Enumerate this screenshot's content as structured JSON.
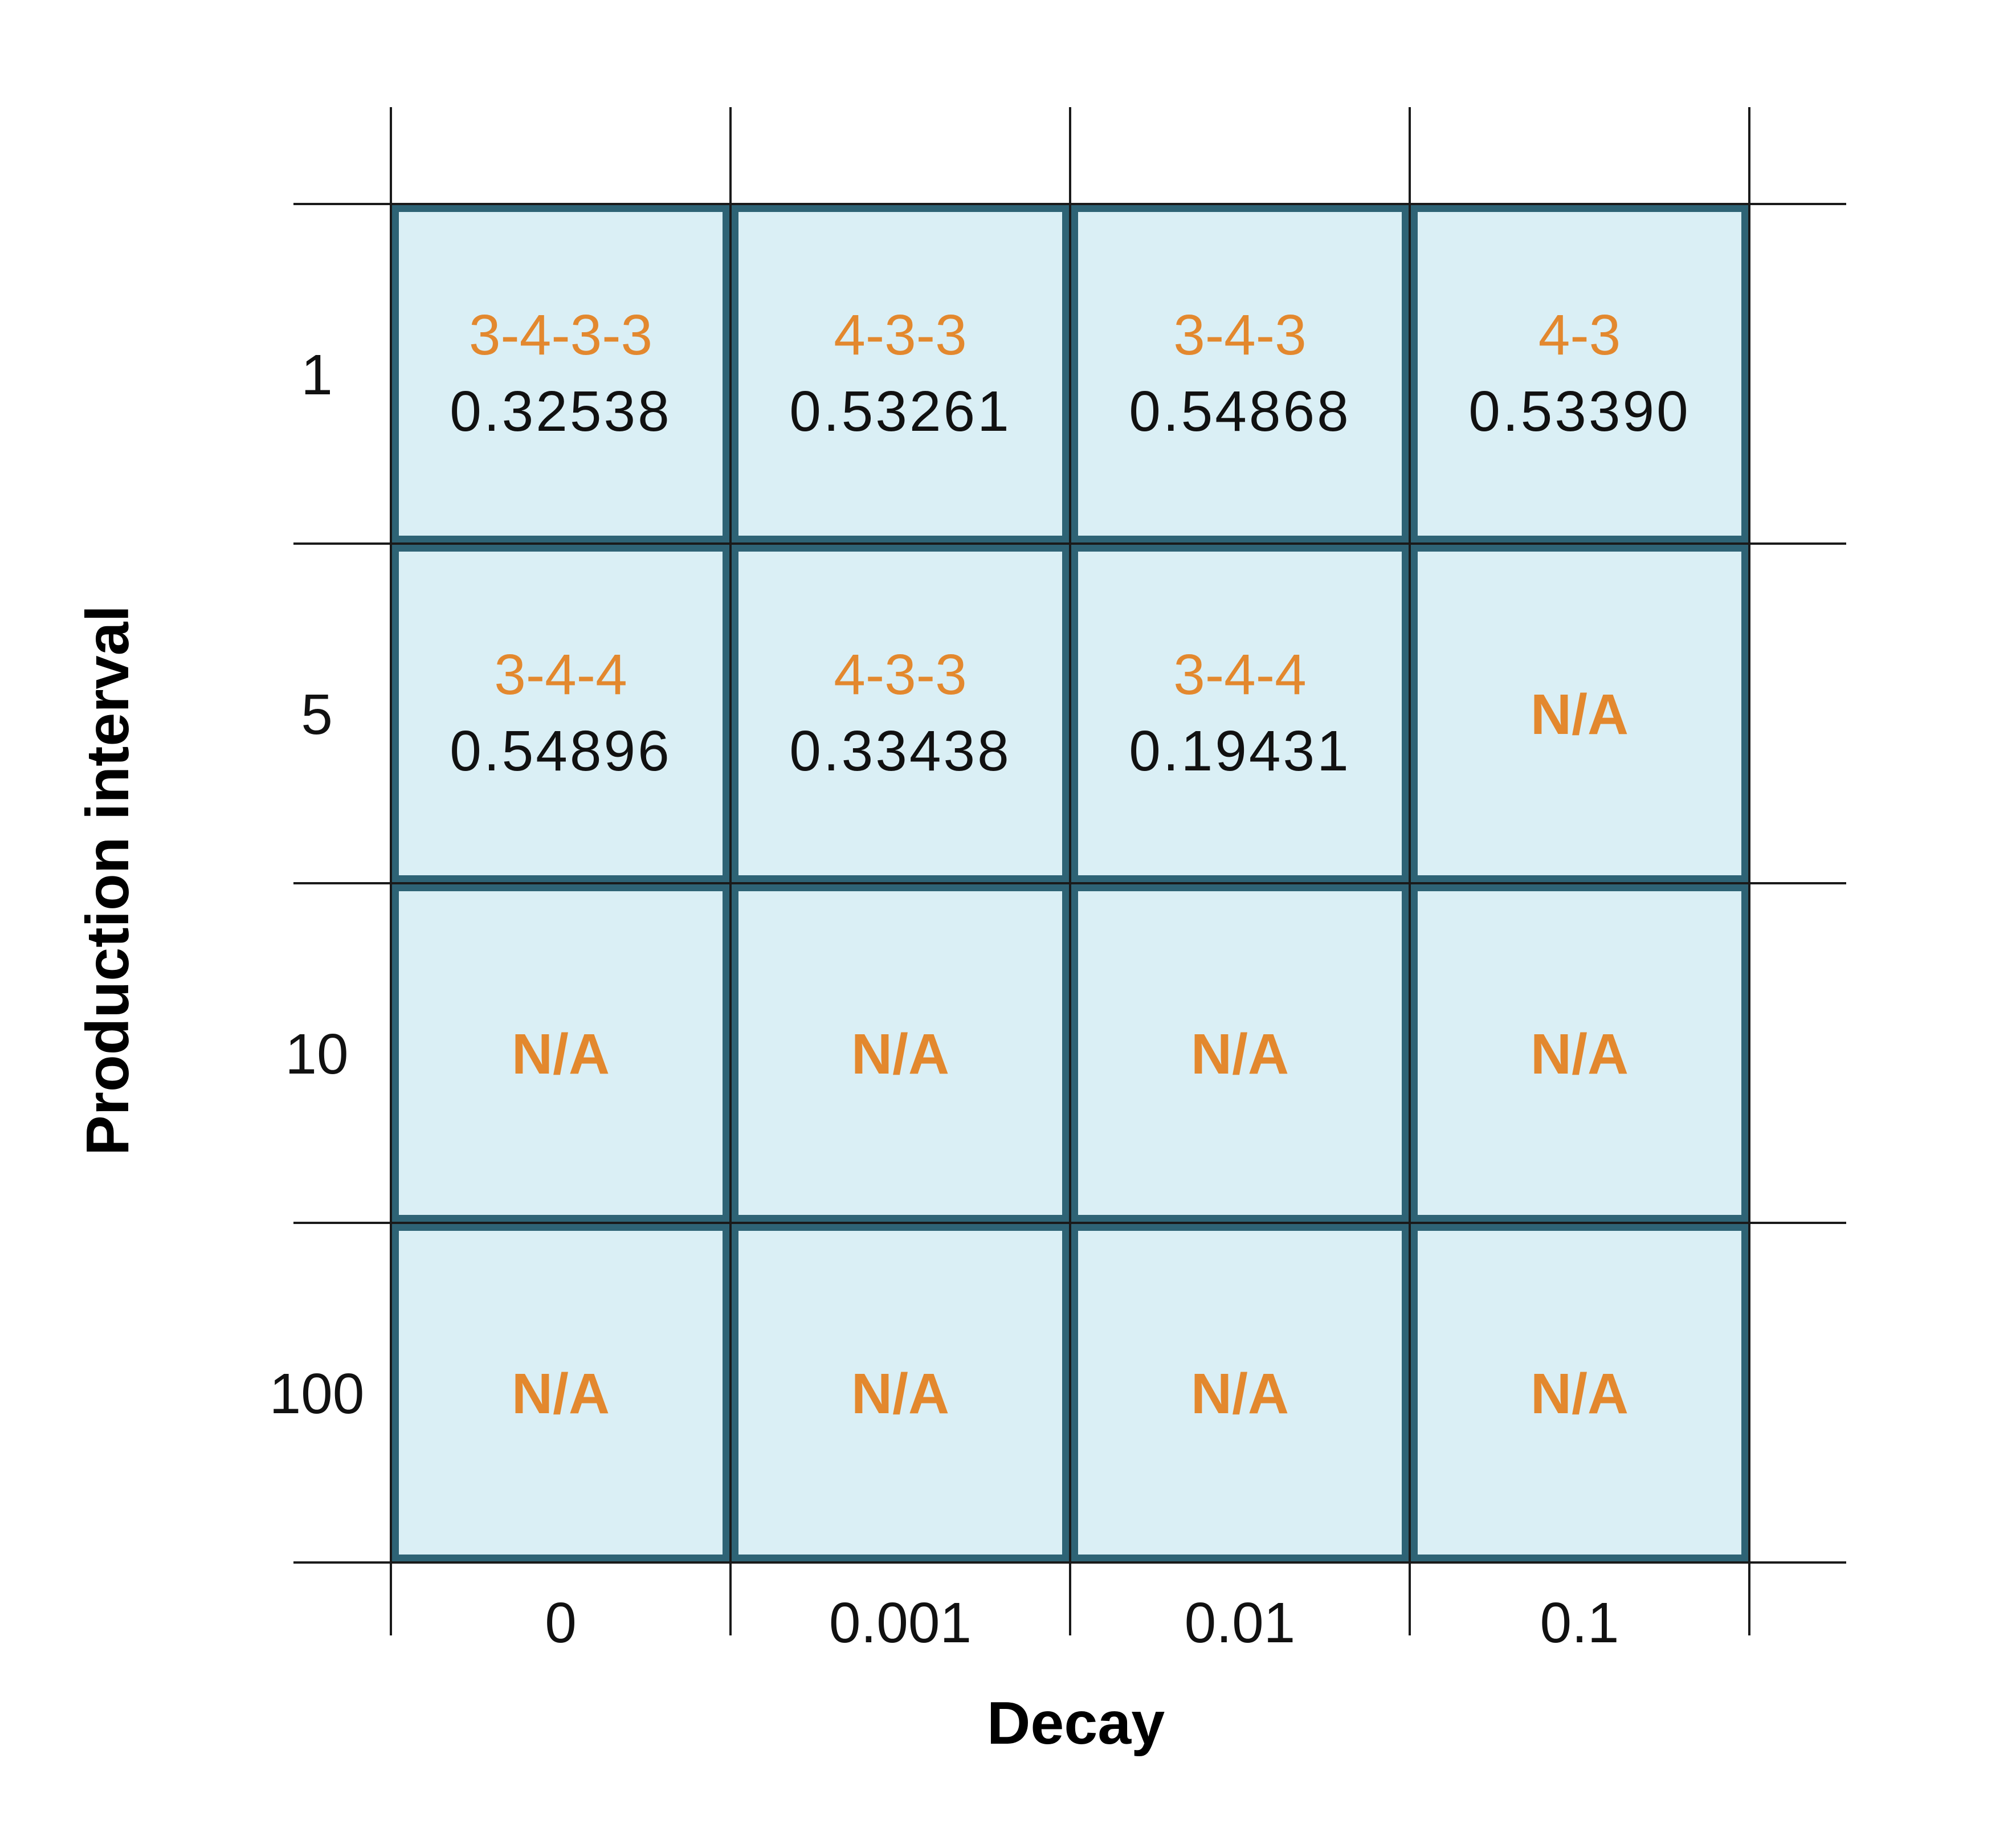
{
  "chart_data": {
    "type": "table",
    "xlabel": "Decay",
    "ylabel": "Production interval",
    "x_categories": [
      "0",
      "0.001",
      "0.01",
      "0.1"
    ],
    "y_categories": [
      "1",
      "5",
      "10",
      "100"
    ],
    "cells": [
      [
        {
          "pattern": "3-4-3-3",
          "value": "0.32538"
        },
        {
          "pattern": "4-3-3",
          "value": "0.53261"
        },
        {
          "pattern": "3-4-3",
          "value": "0.54868"
        },
        {
          "pattern": "4-3",
          "value": "0.53390"
        }
      ],
      [
        {
          "pattern": "3-4-4",
          "value": "0.54896"
        },
        {
          "pattern": "4-3-3",
          "value": "0.33438"
        },
        {
          "pattern": "3-4-4",
          "value": "0.19431"
        },
        {
          "na": "N/A"
        }
      ],
      [
        {
          "na": "N/A"
        },
        {
          "na": "N/A"
        },
        {
          "na": "N/A"
        },
        {
          "na": "N/A"
        }
      ],
      [
        {
          "na": "N/A"
        },
        {
          "na": "N/A"
        },
        {
          "na": "N/A"
        },
        {
          "na": "N/A"
        }
      ]
    ],
    "colors": {
      "cell_fill": "#daeff5",
      "cell_border": "#2e6375",
      "pattern_text": "#e3882e",
      "value_text": "#111111",
      "na_text": "#e3882e",
      "grid_line": "#1a1a1a"
    }
  }
}
